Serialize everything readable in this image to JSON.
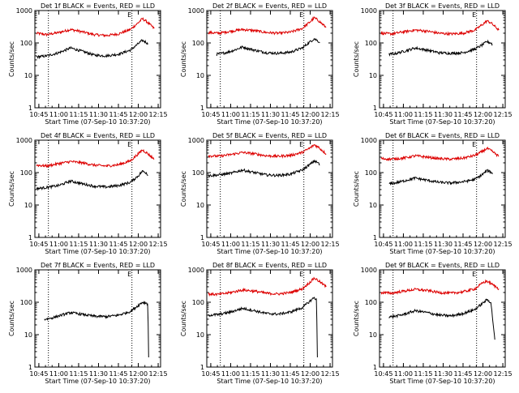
{
  "chart_data": [
    {
      "type": "line",
      "title": "Det 1f BLACK = Events, RED = LLD",
      "xlabel": "Start Time (07-Sep-10 10:37:20)",
      "ylabel": "Counts/sec",
      "xticks": [
        "10:45",
        "11:00",
        "11:15",
        "11:30",
        "11:45",
        "12:00",
        "12:15"
      ],
      "yticks": [
        "1",
        "10",
        "100",
        "1000"
      ],
      "xlim": [
        10.7,
        12.28
      ],
      "ylim_log10": [
        0,
        3
      ],
      "yscale": "log",
      "markers": [
        {
          "time": 10.87,
          "label": ""
        },
        {
          "time": 11.92,
          "label": "E"
        }
      ],
      "series": [
        {
          "color": "#dd0000",
          "x": [
            10.72,
            10.85,
            11.0,
            11.15,
            11.3,
            11.45,
            11.6,
            11.75,
            11.9,
            12.0,
            12.05,
            12.1,
            12.2
          ],
          "y": [
            200,
            180,
            210,
            260,
            220,
            180,
            170,
            190,
            260,
            420,
            560,
            470,
            280
          ]
        },
        {
          "color": "#000000",
          "x": [
            10.72,
            10.85,
            11.0,
            11.15,
            11.3,
            11.45,
            11.6,
            11.75,
            11.9,
            12.0,
            12.05,
            12.1,
            12.12
          ],
          "y": [
            37,
            40,
            50,
            70,
            55,
            42,
            40,
            45,
            60,
            95,
            120,
            105,
            90
          ]
        }
      ]
    },
    {
      "type": "line",
      "title": "Det 2f BLACK = Events, RED = LLD",
      "xlabel": "Start Time (07-Sep-10 10:37:20)",
      "ylabel": "Counts/sec",
      "xticks": [
        "10:45",
        "11:00",
        "11:15",
        "11:30",
        "11:45",
        "12:00",
        "12:15"
      ],
      "yticks": [
        "1",
        "10",
        "100",
        "1000"
      ],
      "xlim": [
        10.7,
        12.28
      ],
      "ylim_log10": [
        0,
        3
      ],
      "yscale": "log",
      "markers": [
        {
          "time": 10.87,
          "label": ""
        },
        {
          "time": 11.92,
          "label": "E"
        }
      ],
      "series": [
        {
          "color": "#dd0000",
          "x": [
            10.72,
            10.85,
            11.0,
            11.15,
            11.3,
            11.45,
            11.6,
            11.75,
            11.9,
            12.0,
            12.05,
            12.1,
            12.2
          ],
          "y": [
            210,
            200,
            230,
            260,
            240,
            210,
            200,
            215,
            280,
            450,
            600,
            500,
            300
          ]
        },
        {
          "color": "#000000",
          "x": [
            10.82,
            10.9,
            11.0,
            11.15,
            11.3,
            11.45,
            11.6,
            11.75,
            11.9,
            12.0,
            12.05,
            12.1,
            12.12
          ],
          "y": [
            45,
            48,
            55,
            75,
            60,
            50,
            48,
            52,
            70,
            110,
            135,
            115,
            100
          ]
        }
      ]
    },
    {
      "type": "line",
      "title": "Det 3f BLACK = Events, RED = LLD",
      "xlabel": "Start Time (07-Sep-10 10:37:20)",
      "ylabel": "Counts/sec",
      "xticks": [
        "10:45",
        "11:00",
        "11:15",
        "11:30",
        "11:45",
        "12:00",
        "12:15"
      ],
      "yticks": [
        "1",
        "10",
        "100",
        "1000"
      ],
      "xlim": [
        10.7,
        12.28
      ],
      "ylim_log10": [
        0,
        3
      ],
      "yscale": "log",
      "markers": [
        {
          "time": 10.87,
          "label": ""
        },
        {
          "time": 11.92,
          "label": "E"
        }
      ],
      "series": [
        {
          "color": "#dd0000",
          "x": [
            10.72,
            10.85,
            11.0,
            11.15,
            11.3,
            11.45,
            11.6,
            11.75,
            11.9,
            12.0,
            12.05,
            12.1,
            12.2
          ],
          "y": [
            200,
            190,
            220,
            250,
            230,
            200,
            190,
            200,
            250,
            380,
            480,
            420,
            250
          ]
        },
        {
          "color": "#000000",
          "x": [
            10.82,
            10.9,
            11.0,
            11.15,
            11.3,
            11.45,
            11.6,
            11.75,
            11.9,
            12.0,
            12.05,
            12.1,
            12.12
          ],
          "y": [
            45,
            47,
            55,
            70,
            60,
            50,
            48,
            50,
            65,
            90,
            110,
            100,
            90
          ]
        }
      ]
    },
    {
      "type": "line",
      "title": "Det 4f BLACK = Events, RED = LLD",
      "xlabel": "Start Time (07-Sep-10 10:37:20)",
      "ylabel": "Counts/sec",
      "xticks": [
        "10:45",
        "11:00",
        "11:15",
        "11:30",
        "11:45",
        "12:00",
        "12:15"
      ],
      "yticks": [
        "1",
        "10",
        "100",
        "1000"
      ],
      "xlim": [
        10.7,
        12.28
      ],
      "ylim_log10": [
        0,
        3
      ],
      "yscale": "log",
      "markers": [
        {
          "time": 10.87,
          "label": ""
        },
        {
          "time": 11.92,
          "label": "E"
        }
      ],
      "series": [
        {
          "color": "#dd0000",
          "x": [
            10.72,
            10.85,
            11.0,
            11.15,
            11.3,
            11.45,
            11.6,
            11.75,
            11.9,
            12.0,
            12.05,
            12.1,
            12.2
          ],
          "y": [
            170,
            160,
            190,
            220,
            200,
            170,
            160,
            175,
            230,
            380,
            500,
            420,
            260
          ]
        },
        {
          "color": "#000000",
          "x": [
            10.72,
            10.85,
            11.0,
            11.15,
            11.3,
            11.45,
            11.6,
            11.75,
            11.9,
            12.0,
            12.05,
            12.1,
            12.12
          ],
          "y": [
            32,
            35,
            40,
            55,
            45,
            38,
            36,
            40,
            50,
            80,
            110,
            100,
            80
          ]
        }
      ]
    },
    {
      "type": "line",
      "title": "Det 5f BLACK = Events, RED = LLD",
      "xlabel": "Start Time (07-Sep-10 10:37:20)",
      "ylabel": "Counts/sec",
      "xticks": [
        "10:45",
        "11:00",
        "11:15",
        "11:30",
        "11:45",
        "12:00",
        "12:15"
      ],
      "yticks": [
        "1",
        "10",
        "100",
        "1000"
      ],
      "xlim": [
        10.7,
        12.28
      ],
      "ylim_log10": [
        0,
        3
      ],
      "yscale": "log",
      "markers": [
        {
          "time": 10.87,
          "label": ""
        },
        {
          "time": 11.92,
          "label": "E"
        }
      ],
      "series": [
        {
          "color": "#dd0000",
          "x": [
            10.72,
            10.85,
            11.0,
            11.15,
            11.3,
            11.45,
            11.6,
            11.75,
            11.9,
            12.0,
            12.05,
            12.1,
            12.2
          ],
          "y": [
            330,
            320,
            360,
            420,
            380,
            330,
            320,
            340,
            420,
            580,
            720,
            620,
            380
          ]
        },
        {
          "color": "#000000",
          "x": [
            10.72,
            10.85,
            11.0,
            11.15,
            11.3,
            11.45,
            11.6,
            11.75,
            11.9,
            12.0,
            12.05,
            12.1,
            12.12
          ],
          "y": [
            80,
            85,
            95,
            120,
            100,
            85,
            82,
            90,
            120,
            180,
            230,
            200,
            170
          ]
        }
      ]
    },
    {
      "type": "line",
      "title": "Det 6f BLACK = Events, RED = LLD",
      "xlabel": "Start Time (07-Sep-10 10:37:20)",
      "ylabel": "Counts/sec",
      "xticks": [
        "10:45",
        "11:00",
        "11:15",
        "11:30",
        "11:45",
        "12:00",
        "12:15"
      ],
      "yticks": [
        "1",
        "10",
        "100",
        "1000"
      ],
      "xlim": [
        10.7,
        12.28
      ],
      "ylim_log10": [
        0,
        3
      ],
      "yscale": "log",
      "markers": [
        {
          "time": 10.87,
          "label": ""
        },
        {
          "time": 11.92,
          "label": "E"
        }
      ],
      "series": [
        {
          "color": "#dd0000",
          "x": [
            10.72,
            10.85,
            11.0,
            11.15,
            11.3,
            11.45,
            11.6,
            11.75,
            11.9,
            12.0,
            12.05,
            12.1,
            12.2
          ],
          "y": [
            270,
            260,
            280,
            330,
            300,
            270,
            260,
            280,
            340,
            460,
            560,
            480,
            320
          ]
        },
        {
          "color": "#000000",
          "x": [
            10.82,
            10.9,
            11.0,
            11.15,
            11.3,
            11.45,
            11.6,
            11.75,
            11.9,
            12.0,
            12.05,
            12.1,
            12.12
          ],
          "y": [
            45,
            48,
            55,
            68,
            58,
            50,
            48,
            52,
            62,
            90,
            115,
            105,
            90
          ]
        }
      ]
    },
    {
      "type": "line",
      "title": "Det 7f BLACK = Events, RED = LLD",
      "xlabel": "Start Time (07-Sep-10 10:37:20)",
      "ylabel": "Counts/sec",
      "xticks": [
        "10:45",
        "11:00",
        "11:15",
        "11:30",
        "11:45",
        "12:00",
        "12:15"
      ],
      "yticks": [
        "1",
        "10",
        "100",
        "1000"
      ],
      "xlim": [
        10.7,
        12.28
      ],
      "ylim_log10": [
        0,
        3
      ],
      "yscale": "log",
      "markers": [
        {
          "time": 10.87,
          "label": ""
        },
        {
          "time": 11.92,
          "label": "E"
        }
      ],
      "series": [
        {
          "color": "#000000",
          "x": [
            10.82,
            10.9,
            11.0,
            11.15,
            11.3,
            11.45,
            11.6,
            11.75,
            11.9,
            12.0,
            12.05,
            12.1,
            12.12,
            12.13
          ],
          "y": [
            30,
            32,
            38,
            48,
            42,
            37,
            36,
            40,
            52,
            80,
            100,
            95,
            90,
            2
          ]
        }
      ]
    },
    {
      "type": "line",
      "title": "Det 8f BLACK = Events, RED = LLD",
      "xlabel": "Start Time (07-Sep-10 10:37:20)",
      "ylabel": "Counts/sec",
      "xticks": [
        "10:45",
        "11:00",
        "11:15",
        "11:30",
        "11:45",
        "12:00",
        "12:15"
      ],
      "yticks": [
        "1",
        "10",
        "100",
        "1000"
      ],
      "xlim": [
        10.7,
        12.28
      ],
      "ylim_log10": [
        0,
        3
      ],
      "yscale": "log",
      "markers": [
        {
          "time": 10.87,
          "label": ""
        },
        {
          "time": 11.92,
          "label": "E"
        }
      ],
      "series": [
        {
          "color": "#dd0000",
          "x": [
            10.72,
            10.85,
            11.0,
            11.15,
            11.3,
            11.45,
            11.6,
            11.75,
            11.9,
            12.0,
            12.05,
            12.1,
            12.2
          ],
          "y": [
            180,
            175,
            200,
            240,
            220,
            190,
            180,
            200,
            260,
            420,
            560,
            470,
            300
          ]
        },
        {
          "color": "#000000",
          "x": [
            10.72,
            10.85,
            11.0,
            11.15,
            11.3,
            11.45,
            11.6,
            11.75,
            11.9,
            12.0,
            12.05,
            12.08,
            12.09
          ],
          "y": [
            40,
            42,
            50,
            65,
            55,
            45,
            43,
            50,
            68,
            110,
            140,
            120,
            2
          ]
        }
      ]
    },
    {
      "type": "line",
      "title": "Det 9f BLACK = Events, RED = LLD",
      "xlabel": "Start Time (07-Sep-10 10:37:20)",
      "ylabel": "Counts/sec",
      "xticks": [
        "10:45",
        "11:00",
        "11:15",
        "11:30",
        "11:45",
        "12:00",
        "12:15"
      ],
      "yticks": [
        "1",
        "10",
        "100",
        "1000"
      ],
      "xlim": [
        10.7,
        12.28
      ],
      "ylim_log10": [
        0,
        3
      ],
      "yscale": "log",
      "markers": [
        {
          "time": 10.87,
          "label": ""
        },
        {
          "time": 11.92,
          "label": "E"
        }
      ],
      "series": [
        {
          "color": "#dd0000",
          "x": [
            10.72,
            10.85,
            11.0,
            11.15,
            11.3,
            11.45,
            11.6,
            11.75,
            11.9,
            12.0,
            12.05,
            12.1,
            12.2
          ],
          "y": [
            200,
            190,
            220,
            250,
            230,
            200,
            190,
            210,
            260,
            400,
            450,
            380,
            260
          ]
        },
        {
          "color": "#000000",
          "x": [
            10.82,
            10.9,
            11.0,
            11.15,
            11.3,
            11.45,
            11.6,
            11.75,
            11.9,
            12.0,
            12.05,
            12.1,
            12.15
          ],
          "y": [
            35,
            37,
            42,
            55,
            48,
            40,
            38,
            45,
            60,
            95,
            120,
            100,
            7
          ]
        }
      ]
    }
  ]
}
